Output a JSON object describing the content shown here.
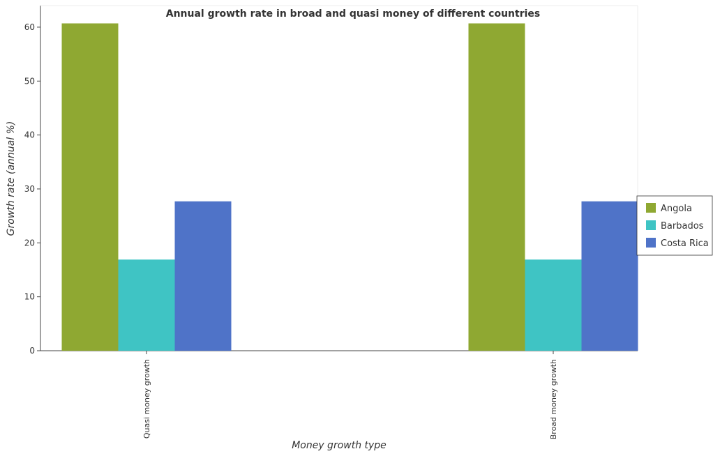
{
  "chart_data": {
    "type": "bar",
    "title": "Annual growth rate in broad and quasi money of different countries",
    "xlabel": "Money growth type",
    "ylabel": "Growth rate (annual %)",
    "categories": [
      "Quasi money growth",
      "Broad money growth"
    ],
    "series": [
      {
        "name": "Angola",
        "values": [
          60.7,
          60.7
        ],
        "color": "#8fa832"
      },
      {
        "name": "Barbados",
        "values": [
          16.9,
          16.9
        ],
        "color": "#3fc4c4"
      },
      {
        "name": "Costa Rica",
        "values": [
          27.7,
          27.7
        ],
        "color": "#4f73c8"
      }
    ],
    "ylim": [
      0,
      64
    ],
    "yticks": [
      0,
      10,
      20,
      30,
      40,
      50,
      60
    ],
    "legend_position": "right",
    "grid": false
  }
}
